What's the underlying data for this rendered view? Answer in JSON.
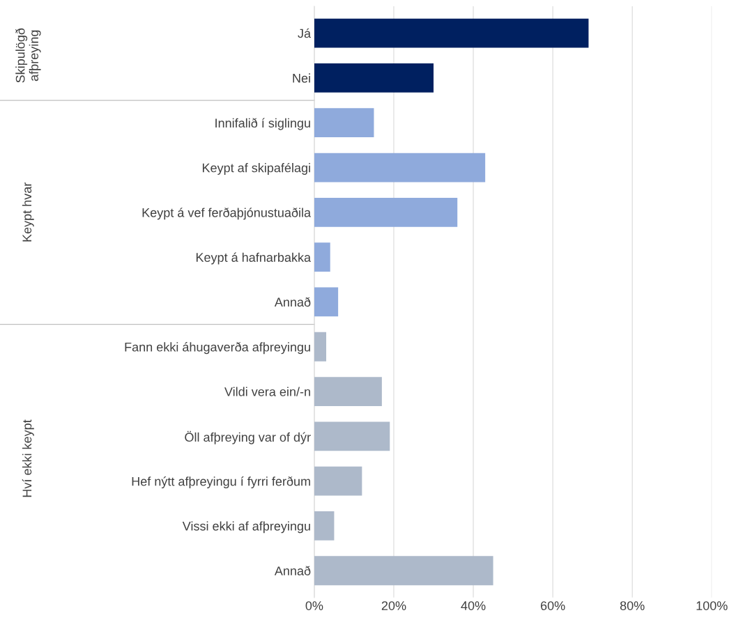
{
  "chart_data": {
    "type": "bar",
    "orientation": "horizontal",
    "categories": [
      "Já",
      "Nei",
      "Innifalið í siglingu",
      "Keypt af skipafélagi",
      "Keypt á vef ferðaþjónustuaðila",
      "Keypt á hafnarbakka",
      "Annað",
      "Fann ekki áhugaverða afþreyingu",
      "Vildi vera ein/-n",
      "Öll afþreying var of dýr",
      "Hef nýtt afþreyingu í fyrri ferðum",
      "Vissi ekki af afþreyingu",
      "Annað"
    ],
    "series": [
      {
        "color": "#002060",
        "values": [
          69,
          30,
          null,
          null,
          null,
          null,
          null,
          null,
          null,
          null,
          null,
          null,
          null
        ]
      },
      {
        "color": "#8faadc",
        "values": [
          null,
          null,
          15,
          43,
          36,
          4,
          6,
          null,
          null,
          null,
          null,
          null,
          null
        ]
      },
      {
        "color": "#adb9ca",
        "values": [
          null,
          null,
          null,
          null,
          null,
          null,
          null,
          3,
          17,
          19,
          12,
          5,
          45
        ]
      }
    ],
    "annotations": [
      "Skipulögð\nafþreying",
      "Keypt hvar",
      "Hví ekki keypt"
    ],
    "xlim": [
      0,
      100
    ],
    "xticks": [
      {
        "value": 0,
        "label": "0%"
      },
      {
        "value": 20,
        "label": "20%"
      },
      {
        "value": 40,
        "label": "40%"
      },
      {
        "value": 60,
        "label": "60%"
      },
      {
        "value": 80,
        "label": "80%"
      },
      {
        "value": 100,
        "label": "100%"
      }
    ],
    "grid": "x"
  }
}
